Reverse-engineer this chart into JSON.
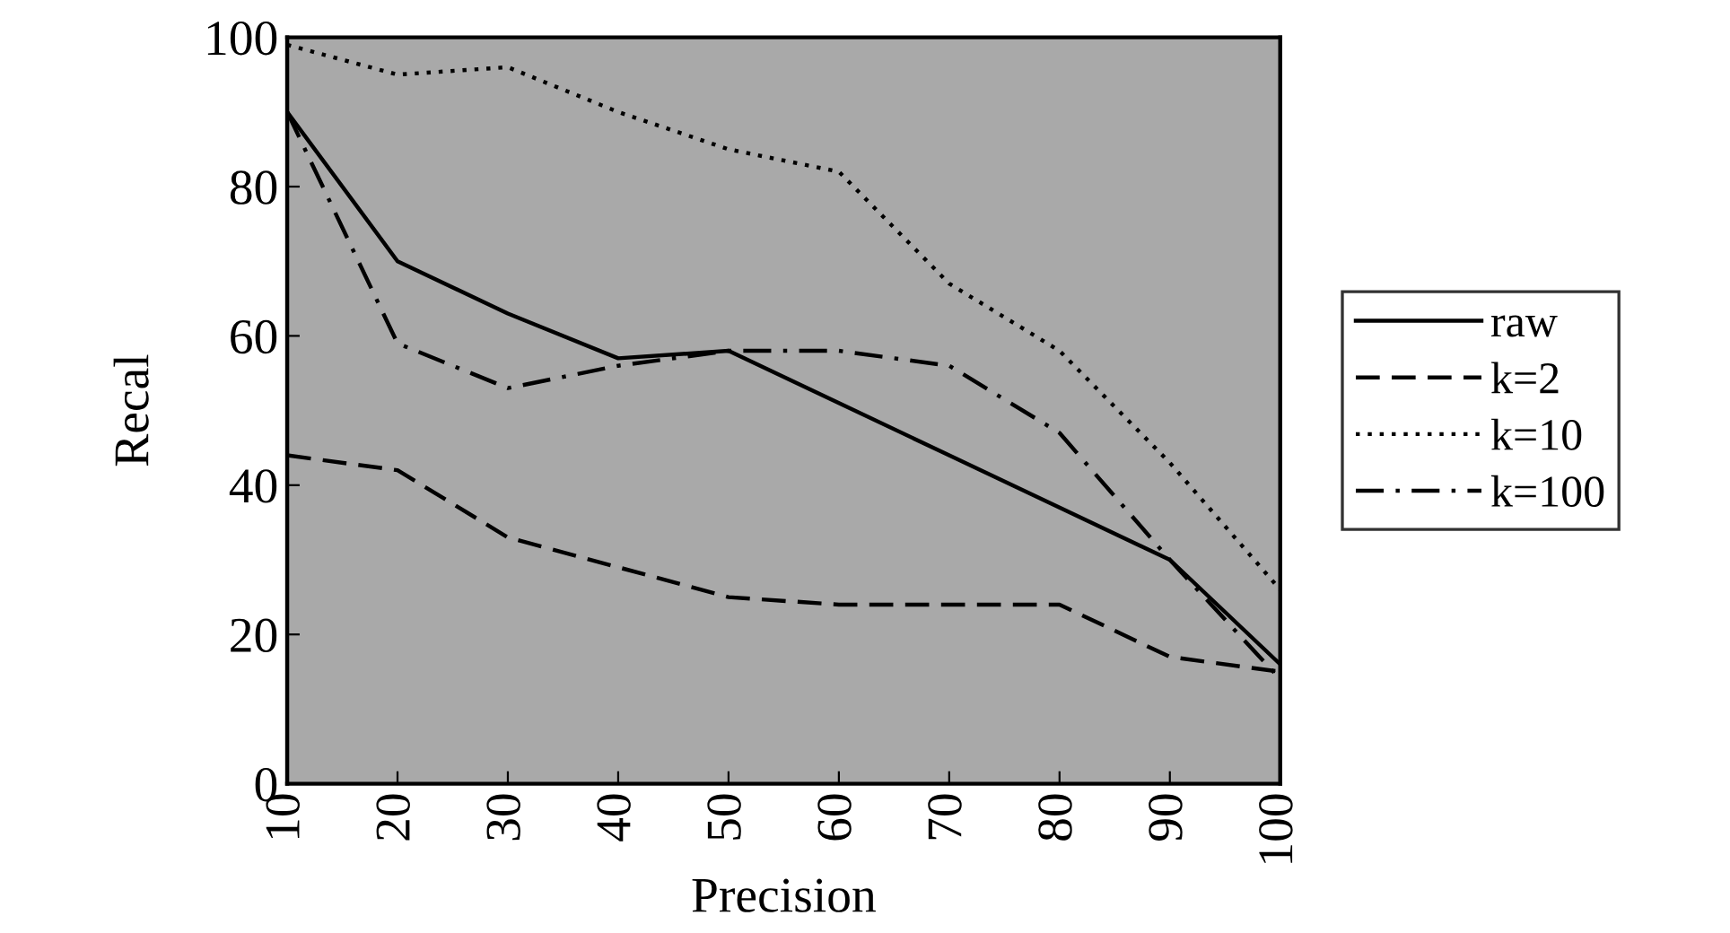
{
  "chart_data": {
    "type": "line",
    "xlabel": "Precision",
    "ylabel": "Recal",
    "x": [
      10,
      20,
      30,
      40,
      50,
      60,
      70,
      80,
      90,
      100
    ],
    "xlim": [
      10,
      100
    ],
    "xticks": [
      10,
      20,
      30,
      40,
      50,
      60,
      70,
      80,
      90,
      100
    ],
    "ylim": [
      0,
      100
    ],
    "yticks": [
      0,
      20,
      40,
      60,
      80,
      100
    ],
    "grid": false,
    "legend": "right",
    "marker": "none",
    "series": [
      {
        "name": "raw",
        "color": "#000000",
        "line_style": "solid",
        "values": [
          90,
          70,
          63,
          57,
          58,
          51,
          44,
          37,
          30,
          16
        ]
      },
      {
        "name": "k=2",
        "color": "#000000",
        "line_style": "dashed",
        "values": [
          44,
          42,
          33,
          29,
          25,
          24,
          24,
          24,
          17,
          15
        ]
      },
      {
        "name": "k=10",
        "color": "#000000",
        "line_style": "dotted",
        "values": [
          99,
          95,
          96,
          90,
          85,
          82,
          67,
          58,
          43,
          26
        ]
      },
      {
        "name": "k=100",
        "color": "#000000",
        "line_style": "dashdot",
        "values": [
          90,
          59,
          53,
          56,
          58,
          58,
          56,
          47,
          30,
          14
        ]
      }
    ]
  }
}
